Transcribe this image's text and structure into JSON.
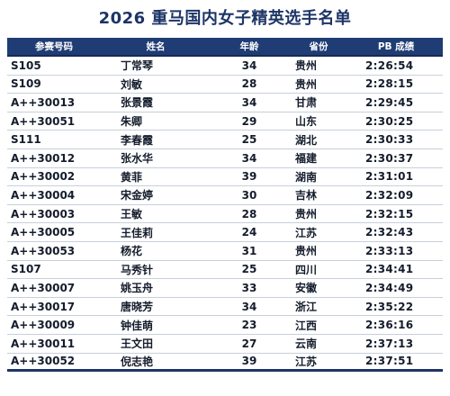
{
  "title": "2026 重马国内女子精英选手名单",
  "columns": [
    "参赛号码",
    "姓名",
    "年龄",
    "省份",
    "PB 成绩"
  ],
  "rows": [
    {
      "bib": "S105",
      "name": "丁常琴",
      "age": "34",
      "province": "贵州",
      "pb": "2:26:54"
    },
    {
      "bib": "S109",
      "name": "刘敏",
      "age": "28",
      "province": "贵州",
      "pb": "2:28:15"
    },
    {
      "bib": "A++30013",
      "name": "张景霞",
      "age": "34",
      "province": "甘肃",
      "pb": "2:29:45"
    },
    {
      "bib": "A++30051",
      "name": "朱卿",
      "age": "29",
      "province": "山东",
      "pb": "2:30:25"
    },
    {
      "bib": "S111",
      "name": "李春霞",
      "age": "25",
      "province": "湖北",
      "pb": "2:30:33"
    },
    {
      "bib": "A++30012",
      "name": "张水华",
      "age": "34",
      "province": "福建",
      "pb": "2:30:37"
    },
    {
      "bib": "A++30002",
      "name": "黄菲",
      "age": "39",
      "province": "湖南",
      "pb": "2:31:01"
    },
    {
      "bib": "A++30004",
      "name": "宋金婷",
      "age": "30",
      "province": "吉林",
      "pb": "2:32:09"
    },
    {
      "bib": "A++30003",
      "name": "王敏",
      "age": "28",
      "province": "贵州",
      "pb": "2:32:15"
    },
    {
      "bib": "A++30005",
      "name": "王佳莉",
      "age": "24",
      "province": "江苏",
      "pb": "2:32:43"
    },
    {
      "bib": "A++30053",
      "name": "杨花",
      "age": "31",
      "province": "贵州",
      "pb": "2:33:13"
    },
    {
      "bib": "S107",
      "name": "马秀针",
      "age": "25",
      "province": "四川",
      "pb": "2:34:41"
    },
    {
      "bib": "A++30007",
      "name": "姚玉舟",
      "age": "33",
      "province": "安徽",
      "pb": "2:34:49"
    },
    {
      "bib": "A++30017",
      "name": "唐晓芳",
      "age": "34",
      "province": "浙江",
      "pb": "2:35:22"
    },
    {
      "bib": "A++30009",
      "name": "钟佳萌",
      "age": "23",
      "province": "江西",
      "pb": "2:36:16"
    },
    {
      "bib": "A++30011",
      "name": "王文田",
      "age": "27",
      "province": "云南",
      "pb": "2:37:13"
    },
    {
      "bib": "A++30052",
      "name": "倪志艳",
      "age": "39",
      "province": "江苏",
      "pb": "2:37:51"
    }
  ]
}
